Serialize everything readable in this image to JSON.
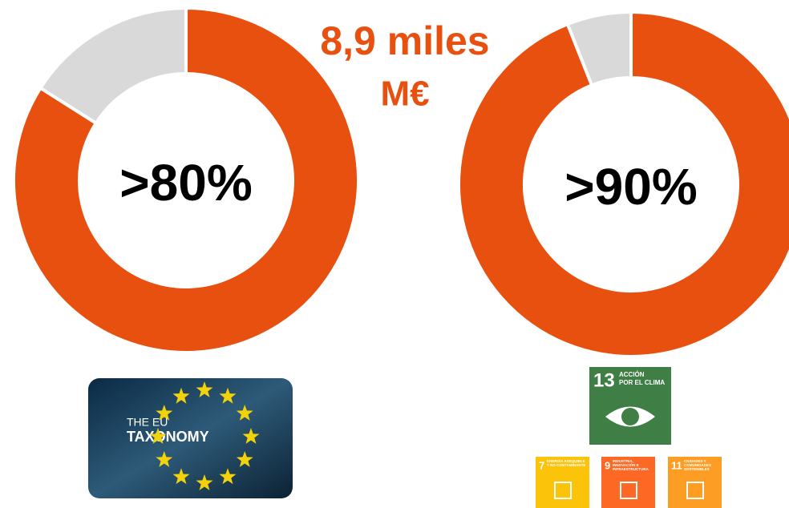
{
  "chart_data": [
    {
      "type": "donut",
      "center_label": ">80%",
      "values": [
        84,
        16
      ],
      "colors": [
        "#e8500f",
        "#d9d9d9"
      ]
    },
    {
      "type": "donut",
      "center_label": ">90%",
      "values": [
        94,
        6
      ],
      "colors": [
        "#e8500f",
        "#d9d9d9"
      ]
    }
  ],
  "headline": [
    "8,9 miles",
    "M€"
  ],
  "taxonomy_badge": [
    "THE EU",
    "TAXONOMY"
  ],
  "sdg_main": {
    "number": "13",
    "label": [
      "ACCIÓN",
      "POR EL CLIMA"
    ]
  },
  "sdg_small": [
    {
      "number": "7",
      "label": [
        "ENERGÍA ASEQUIBLE",
        "Y NO CONTAMINANTE"
      ]
    },
    {
      "number": "9",
      "label": [
        "INDUSTRIA,",
        "INNOVACIÓN E",
        "INFRAESTRUCTURA"
      ]
    },
    {
      "number": "11",
      "label": [
        "CIUDADES Y",
        "COMUNIDADES",
        "SOSTENIBLES"
      ]
    }
  ]
}
